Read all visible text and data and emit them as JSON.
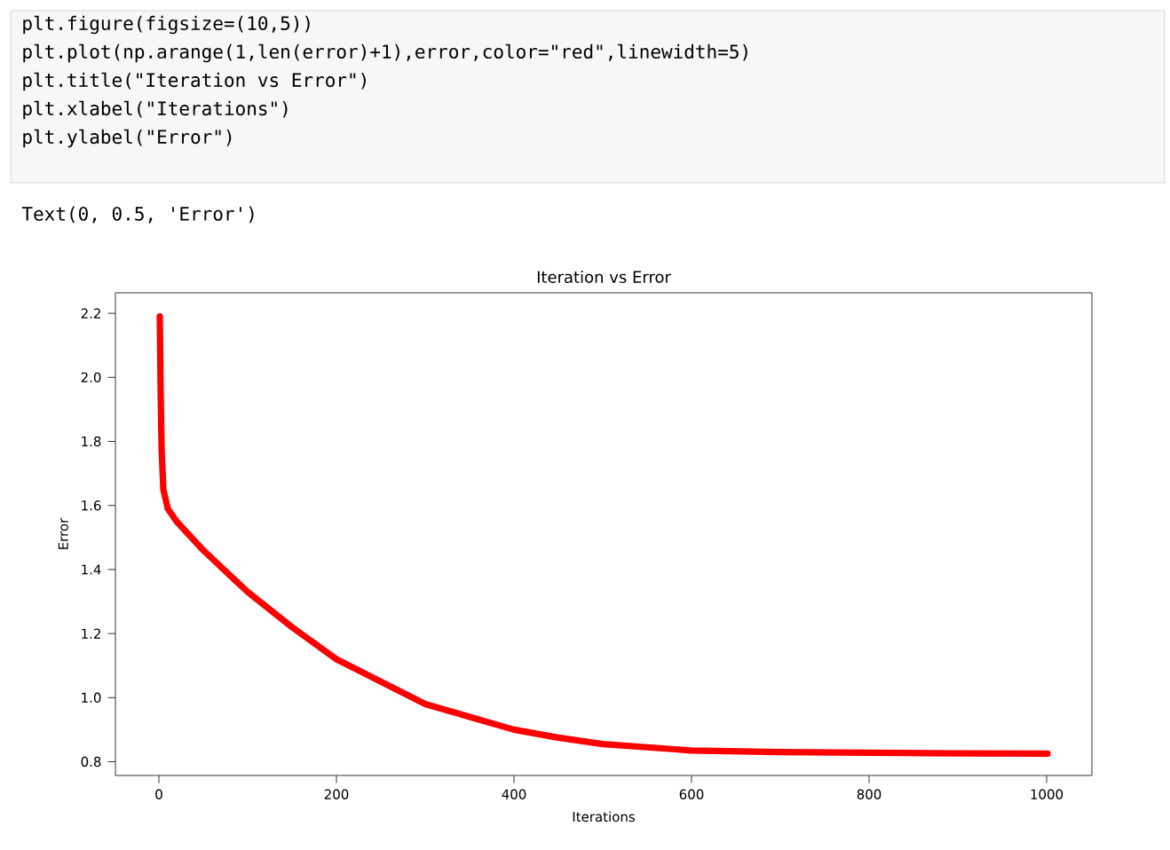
{
  "chart_data": {
    "type": "line",
    "title": "Iteration vs Error",
    "xlabel": "Iterations",
    "ylabel": "Error",
    "x": [
      1,
      2,
      3,
      5,
      10,
      20,
      50,
      100,
      150,
      200,
      250,
      300,
      350,
      400,
      450,
      500,
      600,
      700,
      800,
      900,
      1001
    ],
    "series": [
      {
        "color": "#ff0000",
        "values": [
          2.19,
          1.95,
          1.78,
          1.65,
          1.59,
          1.55,
          1.46,
          1.33,
          1.22,
          1.12,
          1.05,
          0.98,
          0.94,
          0.9,
          0.875,
          0.855,
          0.835,
          0.83,
          0.828,
          0.826,
          0.825
        ]
      }
    ],
    "xlim": [
      -49,
      1051
    ],
    "ylim": [
      0.757,
      2.264
    ],
    "xticks": [
      0,
      200,
      400,
      600,
      800,
      1000
    ],
    "yticks": [
      0.8,
      {
        "value": 1.0,
        "label": "1.0"
      },
      1.2,
      1.4,
      1.6,
      1.8,
      {
        "value": 2.0,
        "label": "2.0"
      },
      2.2
    ],
    "grid": false,
    "marker": "none",
    "line_style": "solid",
    "annotations": [
      "plt.figure(figsize=(10,5))",
      "plt.plot(np.arange(1,len(error)+1),error,color=\"red\",linewidth=5)",
      "plt.title(\"Iteration vs Error\")",
      "plt.xlabel(\"Iterations\")",
      "plt.ylabel(\"Error\")",
      "Text(0, 0.5, 'Error')"
    ]
  }
}
